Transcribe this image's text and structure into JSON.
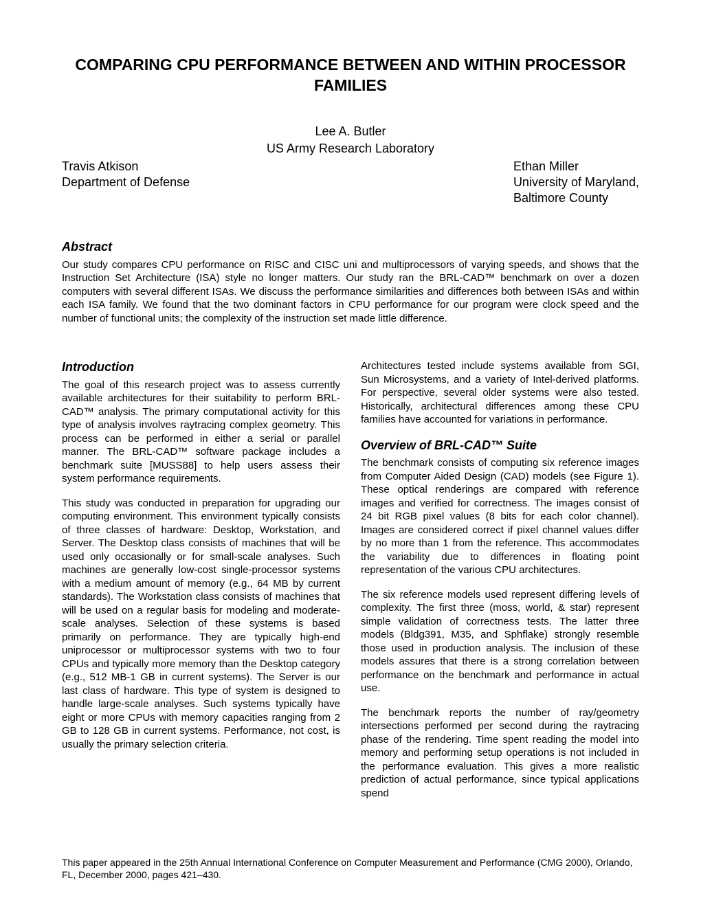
{
  "title": "COMPARING CPU PERFORMANCE BETWEEN AND WITHIN PROCESSOR FAMILIES",
  "mainAuthor": {
    "name": "Lee A. Butler",
    "affiliation": "US Army Research Laboratory"
  },
  "authorLeft": {
    "name": "Travis Atkison",
    "affiliation": "Department of Defense"
  },
  "authorRight": {
    "name": "Ethan Miller",
    "affiliation1": "University of Maryland,",
    "affiliation2": "Baltimore County"
  },
  "abstract": {
    "heading": "Abstract",
    "text": "Our study compares CPU performance on RISC and CISC uni and multiprocessors of varying speeds, and shows that the Instruction Set Architecture (ISA) style no longer matters.  Our study ran the BRL-CAD™ benchmark on over a dozen computers with several different ISAs.  We discuss the performance similarities and differences both between ISAs and within each ISA family.  We found that the two dominant factors in CPU performance for our program were clock speed and the number of functional units; the complexity of the instruction set made little difference."
  },
  "introduction": {
    "heading": "Introduction",
    "p1": "The goal of this research project was to assess currently available architectures for their suitability to perform BRL-CAD™ analysis.  The primary computational activity for this type of analysis involves raytracing complex geometry.  This process can be performed in either a serial or parallel manner.  The BRL-CAD™ software package includes a benchmark suite [MUSS88] to help users assess their system performance requirements.",
    "p2": "This study was conducted in preparation for upgrading our computing environment.  This environment typically consists of three classes of hardware: Desktop, Workstation, and Server. The Desktop class consists of machines that will be used only occasionally or for small-scale analyses.  Such machines are generally low-cost single-processor systems with a medium amount of memory (e.g., 64 MB by current standards).  The Workstation class consists of machines that will be used on a regular basis for modeling and moderate-scale analyses. Selection of these systems is based primarily on performance.  They are typically high-end uniprocessor or multiprocessor systems with two to four CPUs and typically more memory than the Desktop category (e.g., 512 MB-1 GB in current systems). The Server is our last class of hardware. This type of system is designed to handle large-scale analyses.  Such systems typically have eight or more CPUs with memory capacities ranging from 2 GB to 128 GB in current systems.  Performance, not cost, is usually the primary selection criteria."
  },
  "rightCol": {
    "p1": "Architectures tested include systems available from SGI, Sun Microsystems, and a variety of Intel-derived platforms.  For perspective, several older systems were also tested.  Historically, architectural differences among these CPU families have accounted for variations in performance.",
    "overviewHeading": "Overview of BRL-CAD™ Suite",
    "p2": "The benchmark consists of computing six reference images from Computer Aided Design (CAD) models (see Figure 1).  These optical renderings are compared with reference images and verified for correctness.  The images consist of 24 bit RGB pixel values (8 bits for each color channel).  Images are considered correct if pixel channel values differ by no more than 1 from the reference.  This accommodates the variability due to differences in floating point representation of the various CPU architectures.",
    "p3": "The six reference models used represent differing levels of complexity.  The first three (moss, world, & star) represent simple validation of correctness tests. The latter three models (Bldg391, M35, and Sphflake) strongly resemble those used in production analysis. The inclusion of these models assures that there is a strong correlation between performance on the benchmark and performance in actual use.",
    "p4": "The benchmark reports the number of ray/geometry intersections performed per second during the raytracing phase of the rendering.  Time spent reading the model into memory and performing setup operations is not included in the performance evaluation.  This gives a more realistic prediction of actual performance, since typical applications spend"
  },
  "footer": "This paper appeared in the 25th Annual International Conference on Computer Measurement and Performance (CMG 2000), Orlando, FL, December 2000, pages 421–430."
}
